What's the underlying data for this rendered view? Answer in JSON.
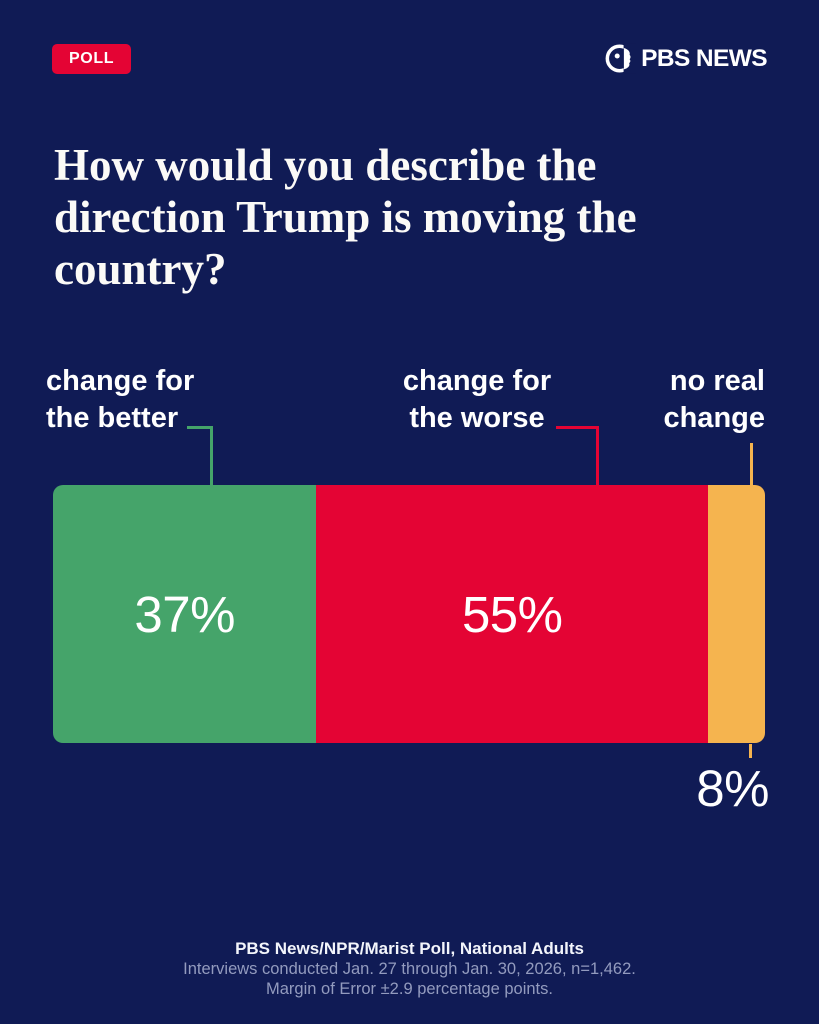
{
  "theme": {
    "background": "#101B55",
    "text_primary": "#FFFFFF",
    "text_muted": "#939BBE"
  },
  "badge": {
    "label": "POLL",
    "bg": "#E40434"
  },
  "brand": {
    "name": "PBS NEWS",
    "icon": "pbs-head-icon"
  },
  "title": "How would you describe the direction Trump is moving the country?",
  "title_lines": [
    "How would you describe the",
    "direction Trump is moving the",
    "country?"
  ],
  "chart_data": {
    "type": "bar",
    "variant": "horizontal-stacked-100-percent",
    "title": "How would you describe the direction Trump is moving the country?",
    "categories": [
      "change for the better",
      "change for the worse",
      "no real change"
    ],
    "category_lines": [
      [
        "change for",
        "the better"
      ],
      [
        "change for",
        "the worse"
      ],
      [
        "no real",
        "change"
      ]
    ],
    "values": [
      37,
      55,
      8
    ],
    "unit": "percent",
    "value_labels": [
      "37%",
      "55%",
      "8%"
    ],
    "colors": [
      "#45A46A",
      "#E40434",
      "#F5B44F"
    ],
    "axis": "none",
    "grid": false,
    "legend_position": "labels-above-bar-with-connector-lines",
    "value_label_position": [
      "inside",
      "inside",
      "below-bar"
    ]
  },
  "footer": {
    "line1": "PBS News/NPR/Marist Poll, National Adults",
    "line2": "Interviews conducted Jan. 27 through Jan. 30, 2026, n=1,462.",
    "line3": "Margin of Error ±2.9 percentage points."
  }
}
